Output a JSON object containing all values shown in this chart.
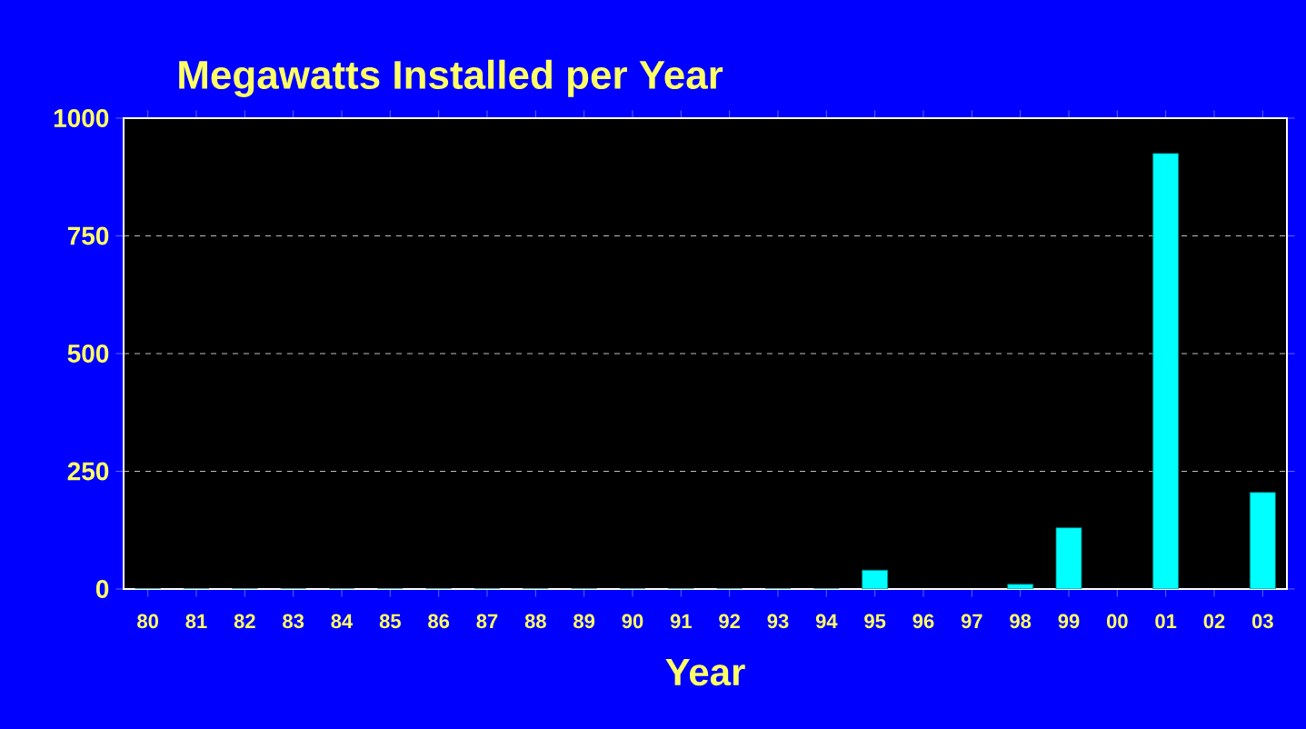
{
  "chart_data": {
    "type": "bar",
    "title": "Megawatts Installed per Year",
    "xlabel": "Year",
    "categories": [
      "80",
      "81",
      "82",
      "83",
      "84",
      "85",
      "86",
      "87",
      "88",
      "89",
      "90",
      "91",
      "92",
      "93",
      "94",
      "95",
      "96",
      "97",
      "98",
      "99",
      "00",
      "01",
      "02",
      "03"
    ],
    "values": [
      0,
      0,
      0,
      0,
      0,
      0,
      0,
      0,
      0,
      0,
      0,
      0,
      0,
      0,
      0,
      40,
      null,
      null,
      10,
      130,
      null,
      925,
      null,
      205
    ],
    "color": "#00ffff",
    "ylim": [
      0,
      1000
    ],
    "yticks": [
      0,
      250,
      500,
      750,
      1000
    ],
    "grid": "y"
  }
}
